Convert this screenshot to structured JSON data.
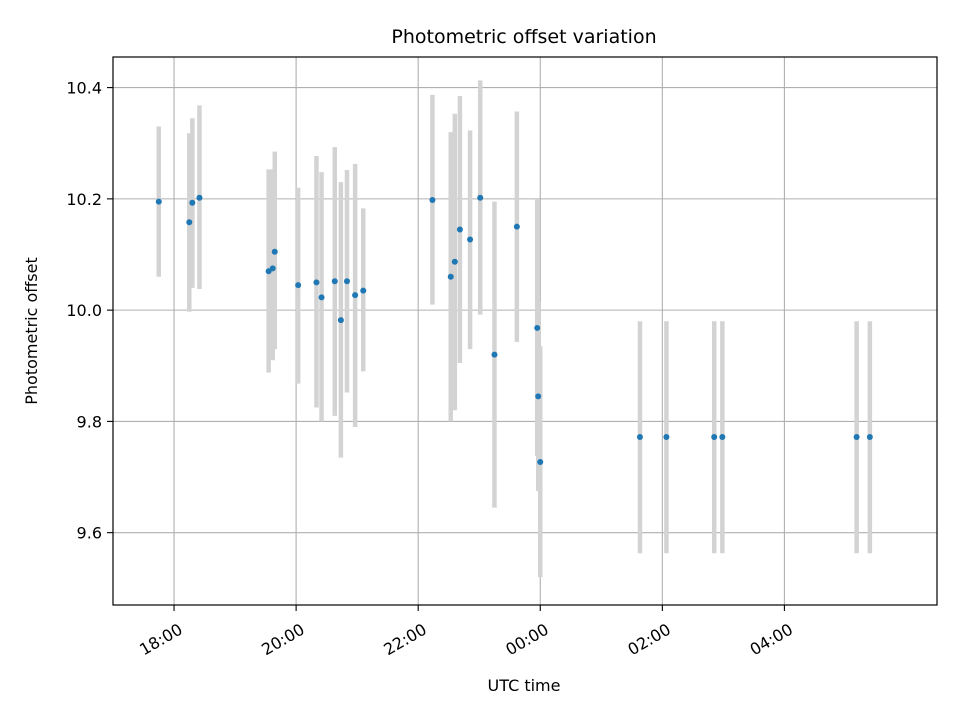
{
  "chart_data": {
    "type": "scatter",
    "title": "Photometric offset variation",
    "xlabel": "UTC time",
    "ylabel": "Photometric offset",
    "x_axis": {
      "type": "time",
      "tick_format": "HH:MM",
      "xlim": [
        "17:00",
        "30:30"
      ],
      "ticks": [
        {
          "hours": 18,
          "label": "18:00"
        },
        {
          "hours": 20,
          "label": "20:00"
        },
        {
          "hours": 22,
          "label": "22:00"
        },
        {
          "hours": 24,
          "label": "00:00"
        },
        {
          "hours": 26,
          "label": "02:00"
        },
        {
          "hours": 28,
          "label": "04:00"
        }
      ]
    },
    "y_axis": {
      "ylim": [
        9.47,
        10.455
      ],
      "ticks": [
        {
          "value": 9.6,
          "label": "9.6"
        },
        {
          "value": 9.8,
          "label": "9.8"
        },
        {
          "value": 10.0,
          "label": "10.0"
        },
        {
          "value": 10.2,
          "label": "10.2"
        },
        {
          "value": 10.4,
          "label": "10.4"
        }
      ]
    },
    "grid": true,
    "colors": {
      "point": "#1f77b4",
      "errorbar": "#d3d3d3",
      "grid": "#b0b0b0",
      "axes": "#000000"
    },
    "series": [
      {
        "points": [
          {
            "x": "17:45",
            "y": 10.195,
            "ylo": 10.06,
            "yhi": 10.33
          },
          {
            "x": "18:15",
            "y": 10.158,
            "ylo": 9.997,
            "yhi": 10.318
          },
          {
            "x": "18:18",
            "y": 10.193,
            "ylo": 10.04,
            "yhi": 10.345
          },
          {
            "x": "18:25",
            "y": 10.202,
            "ylo": 10.038,
            "yhi": 10.368
          },
          {
            "x": "19:33",
            "y": 10.07,
            "ylo": 9.888,
            "yhi": 10.253
          },
          {
            "x": "19:37",
            "y": 10.075,
            "ylo": 9.91,
            "yhi": 10.253
          },
          {
            "x": "19:39",
            "y": 10.105,
            "ylo": 9.93,
            "yhi": 10.285
          },
          {
            "x": "20:02",
            "y": 10.045,
            "ylo": 9.868,
            "yhi": 10.22
          },
          {
            "x": "20:20",
            "y": 10.05,
            "ylo": 9.825,
            "yhi": 10.277
          },
          {
            "x": "20:25",
            "y": 10.023,
            "ylo": 9.8,
            "yhi": 10.248
          },
          {
            "x": "20:38",
            "y": 10.052,
            "ylo": 9.81,
            "yhi": 10.293
          },
          {
            "x": "20:44",
            "y": 9.982,
            "ylo": 9.735,
            "yhi": 10.23
          },
          {
            "x": "20:50",
            "y": 10.052,
            "ylo": 9.852,
            "yhi": 10.252
          },
          {
            "x": "20:58",
            "y": 10.027,
            "ylo": 9.79,
            "yhi": 10.263
          },
          {
            "x": "21:06",
            "y": 10.035,
            "ylo": 9.89,
            "yhi": 10.183
          },
          {
            "x": "22:14",
            "y": 10.198,
            "ylo": 10.01,
            "yhi": 10.387
          },
          {
            "x": "22:32",
            "y": 10.06,
            "ylo": 9.8,
            "yhi": 10.32
          },
          {
            "x": "22:36",
            "y": 10.087,
            "ylo": 9.82,
            "yhi": 10.353
          },
          {
            "x": "22:41",
            "y": 10.145,
            "ylo": 9.905,
            "yhi": 10.385
          },
          {
            "x": "22:51",
            "y": 10.127,
            "ylo": 9.93,
            "yhi": 10.323
          },
          {
            "x": "23:01",
            "y": 10.202,
            "ylo": 9.992,
            "yhi": 10.413
          },
          {
            "x": "23:15",
            "y": 9.92,
            "ylo": 9.645,
            "yhi": 10.195
          },
          {
            "x": "23:37",
            "y": 10.15,
            "ylo": 9.943,
            "yhi": 10.357
          },
          {
            "x": "23:57",
            "y": 9.968,
            "ylo": 9.738,
            "yhi": 10.2
          },
          {
            "x": "23:58",
            "y": 9.845,
            "ylo": 9.675,
            "yhi": 10.015
          },
          {
            "x": "24:00",
            "y": 9.727,
            "ylo": 9.52,
            "yhi": 9.935
          },
          {
            "x": "25:38",
            "y": 9.772,
            "ylo": 9.563,
            "yhi": 9.98
          },
          {
            "x": "26:04",
            "y": 9.772,
            "ylo": 9.563,
            "yhi": 9.98
          },
          {
            "x": "26:51",
            "y": 9.772,
            "ylo": 9.563,
            "yhi": 9.98
          },
          {
            "x": "26:59",
            "y": 9.772,
            "ylo": 9.563,
            "yhi": 9.98
          },
          {
            "x": "29:11",
            "y": 9.772,
            "ylo": 9.563,
            "yhi": 9.98
          },
          {
            "x": "29:24",
            "y": 9.772,
            "ylo": 9.563,
            "yhi": 9.98
          }
        ]
      }
    ]
  }
}
